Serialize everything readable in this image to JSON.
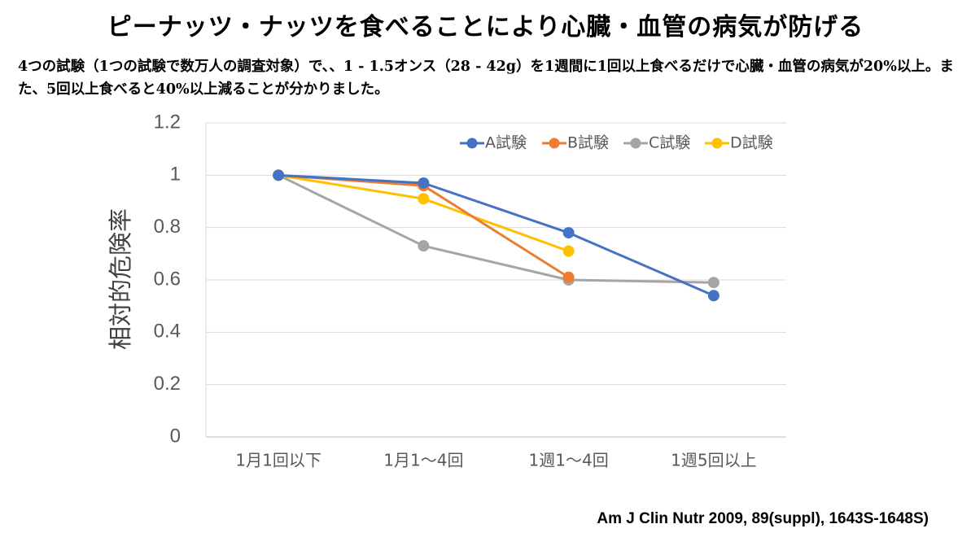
{
  "title": "ピーナッツ・ナッツを食べることにより心臓・血管の病気が防げる",
  "description": "4つの試験（1つの試験で数万人の調査対象）で、、1 - 1.5オンス（28 - 42g）を1週間に1回以上食べるだけで心臓・血管の病気が20%以上。また、5回以上食べると40%以上減ることが分かりました。",
  "source": "Am J Clin Nutr 2009, 89(suppl), 1643S-1648S)",
  "chart_data": {
    "type": "line",
    "title": "",
    "xlabel": "",
    "ylabel": "相対的危険率",
    "categories": [
      "1月1回以下",
      "1月1～4回",
      "1週1～4回",
      "1週5回以上"
    ],
    "ylim": [
      0,
      1.2
    ],
    "yticks": [
      0,
      0.2,
      0.4,
      0.6,
      0.8,
      1,
      1.2
    ],
    "ytick_labels": [
      "0",
      "0.2",
      "0.4",
      "0.6",
      "0.8",
      "1",
      "1.2"
    ],
    "grid": true,
    "legend_position": "top-right",
    "series": [
      {
        "name": "A試験",
        "color": "#4472C4",
        "values": [
          1.0,
          0.97,
          0.78,
          0.54
        ]
      },
      {
        "name": "B試験",
        "color": "#ED7D31",
        "values": [
          1.0,
          0.96,
          0.61,
          null
        ]
      },
      {
        "name": "C試験",
        "color": "#A5A5A5",
        "values": [
          1.0,
          0.73,
          0.6,
          0.59
        ]
      },
      {
        "name": "D試験",
        "color": "#FFC000",
        "values": [
          1.0,
          0.91,
          0.71,
          null
        ]
      }
    ]
  }
}
